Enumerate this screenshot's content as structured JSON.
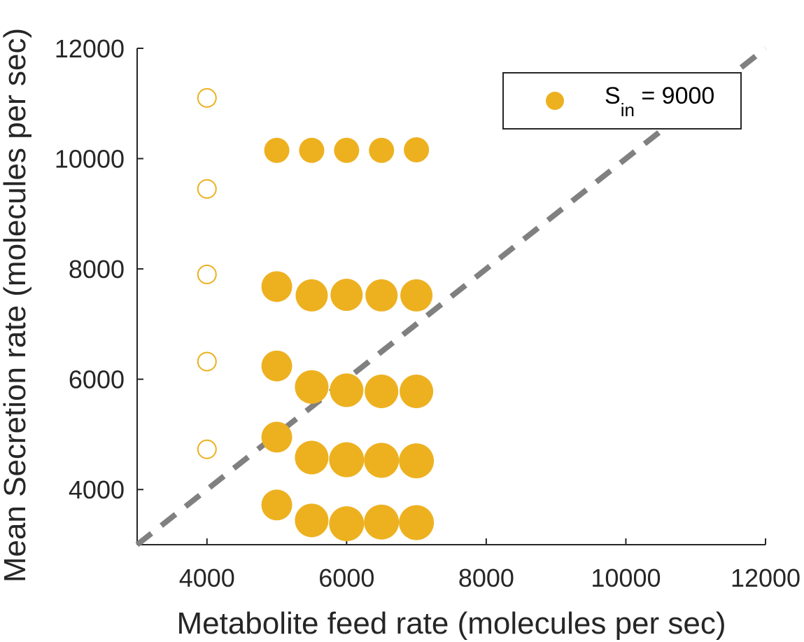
{
  "chart_data": {
    "type": "scatter",
    "xlabel": "Metabolite feed rate (molecules per sec)",
    "ylabel": "Mean Secretion rate (molecules per sec)",
    "xlim": [
      3000,
      12000
    ],
    "ylim": [
      3000,
      12000
    ],
    "xticks": [
      "4000",
      "6000",
      "8000",
      "10000",
      "12000"
    ],
    "yticks": [
      "4000",
      "6000",
      "8000",
      "10000",
      "12000"
    ],
    "grid": false,
    "legend_position": "top-right",
    "legend": {
      "symbol": "S",
      "subscript": "in",
      "suffix": " = 9000"
    },
    "colors": {
      "marker": "#EDB120",
      "reference_line": "#808080",
      "axes": "#262626"
    },
    "series": [
      {
        "name": "S_in = 9000",
        "filled": true,
        "points": [
          {
            "x": 5000,
            "y": 10150,
            "r": 18
          },
          {
            "x": 5500,
            "y": 10150,
            "r": 18
          },
          {
            "x": 6000,
            "y": 10150,
            "r": 18
          },
          {
            "x": 6500,
            "y": 10150,
            "r": 18
          },
          {
            "x": 7000,
            "y": 10160,
            "r": 18
          },
          {
            "x": 5000,
            "y": 7680,
            "r": 22
          },
          {
            "x": 5500,
            "y": 7520,
            "r": 23
          },
          {
            "x": 6000,
            "y": 7530,
            "r": 23
          },
          {
            "x": 6500,
            "y": 7520,
            "r": 23
          },
          {
            "x": 7000,
            "y": 7520,
            "r": 23
          },
          {
            "x": 5000,
            "y": 6240,
            "r": 22
          },
          {
            "x": 5500,
            "y": 5860,
            "r": 24
          },
          {
            "x": 6000,
            "y": 5800,
            "r": 24
          },
          {
            "x": 6500,
            "y": 5780,
            "r": 24
          },
          {
            "x": 7000,
            "y": 5780,
            "r": 24
          },
          {
            "x": 5000,
            "y": 4950,
            "r": 22
          },
          {
            "x": 5500,
            "y": 4580,
            "r": 24
          },
          {
            "x": 6000,
            "y": 4540,
            "r": 25
          },
          {
            "x": 6500,
            "y": 4530,
            "r": 25
          },
          {
            "x": 7000,
            "y": 4520,
            "r": 25
          },
          {
            "x": 5000,
            "y": 3720,
            "r": 22
          },
          {
            "x": 5500,
            "y": 3440,
            "r": 24
          },
          {
            "x": 6000,
            "y": 3380,
            "r": 25
          },
          {
            "x": 6500,
            "y": 3410,
            "r": 25
          },
          {
            "x": 7000,
            "y": 3400,
            "r": 25
          }
        ]
      },
      {
        "filled": false,
        "points": [
          {
            "x": 4000,
            "y": 11100,
            "r": 13
          },
          {
            "x": 4000,
            "y": 9450,
            "r": 13
          },
          {
            "x": 4000,
            "y": 7900,
            "r": 13
          },
          {
            "x": 4000,
            "y": 6320,
            "r": 13
          },
          {
            "x": 4000,
            "y": 4730,
            "r": 13
          }
        ]
      }
    ],
    "reference_line": {
      "x": [
        3000,
        12000
      ],
      "y": [
        3000,
        12000
      ],
      "style": "dashed"
    }
  }
}
